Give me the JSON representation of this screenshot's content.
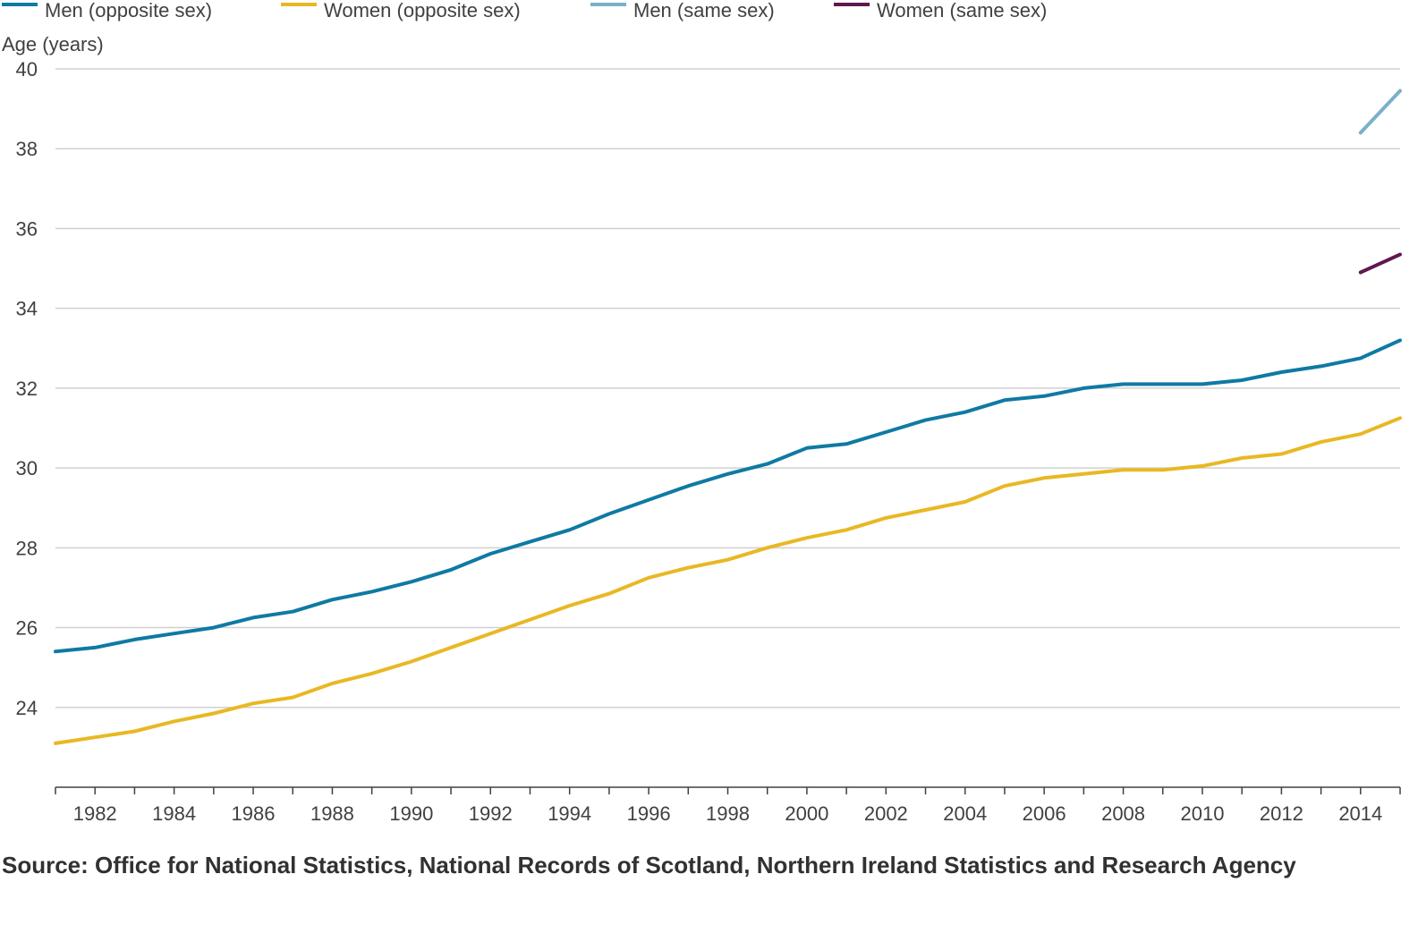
{
  "chart_data": {
    "type": "line",
    "ylabel": "Age (years)",
    "ylim": [
      22,
      40
    ],
    "xlim": [
      1981,
      2015
    ],
    "yticks": [
      24,
      26,
      28,
      30,
      32,
      34,
      36,
      38,
      40
    ],
    "xticks": [
      1982,
      1984,
      1986,
      1988,
      1990,
      1992,
      1994,
      1996,
      1998,
      2000,
      2002,
      2004,
      2006,
      2008,
      2010,
      2012,
      2014
    ],
    "grid": true,
    "legend_position": "top",
    "series": [
      {
        "name": "Men (opposite sex)",
        "color": "#0f7aa3",
        "x": [
          1981,
          1982,
          1983,
          1984,
          1985,
          1986,
          1987,
          1988,
          1989,
          1990,
          1991,
          1992,
          1993,
          1994,
          1995,
          1996,
          1997,
          1998,
          1999,
          2000,
          2001,
          2002,
          2003,
          2004,
          2005,
          2006,
          2007,
          2008,
          2009,
          2010,
          2011,
          2012,
          2013,
          2014,
          2015
        ],
        "values": [
          25.4,
          25.5,
          25.7,
          25.85,
          26.0,
          26.25,
          26.4,
          26.7,
          26.9,
          27.15,
          27.45,
          27.85,
          28.15,
          28.45,
          28.85,
          29.2,
          29.55,
          29.85,
          30.1,
          30.5,
          30.6,
          30.9,
          31.2,
          31.4,
          31.7,
          31.8,
          32.0,
          32.1,
          32.1,
          32.1,
          32.2,
          32.4,
          32.55,
          32.75,
          33.2
        ]
      },
      {
        "name": "Women (opposite sex)",
        "color": "#e8b824",
        "x": [
          1981,
          1982,
          1983,
          1984,
          1985,
          1986,
          1987,
          1988,
          1989,
          1990,
          1991,
          1992,
          1993,
          1994,
          1995,
          1996,
          1997,
          1998,
          1999,
          2000,
          2001,
          2002,
          2003,
          2004,
          2005,
          2006,
          2007,
          2008,
          2009,
          2010,
          2011,
          2012,
          2013,
          2014,
          2015
        ],
        "values": [
          23.1,
          23.25,
          23.4,
          23.65,
          23.85,
          24.1,
          24.25,
          24.6,
          24.85,
          25.15,
          25.5,
          25.85,
          26.2,
          26.55,
          26.85,
          27.25,
          27.5,
          27.7,
          28.0,
          28.25,
          28.45,
          28.75,
          28.95,
          29.15,
          29.55,
          29.75,
          29.85,
          29.95,
          29.95,
          30.05,
          30.25,
          30.35,
          30.65,
          30.85,
          31.25
        ]
      },
      {
        "name": "Men (same sex)",
        "color": "#7bb0c8",
        "x": [
          2014,
          2015
        ],
        "values": [
          38.4,
          39.45
        ]
      },
      {
        "name": "Women (same sex)",
        "color": "#5f1850",
        "x": [
          2014,
          2015
        ],
        "values": [
          34.9,
          35.35
        ]
      }
    ]
  },
  "source_text": "Source: Office for National Statistics, National Records of Scotland, Northern Ireland Statistics and Research Agency"
}
